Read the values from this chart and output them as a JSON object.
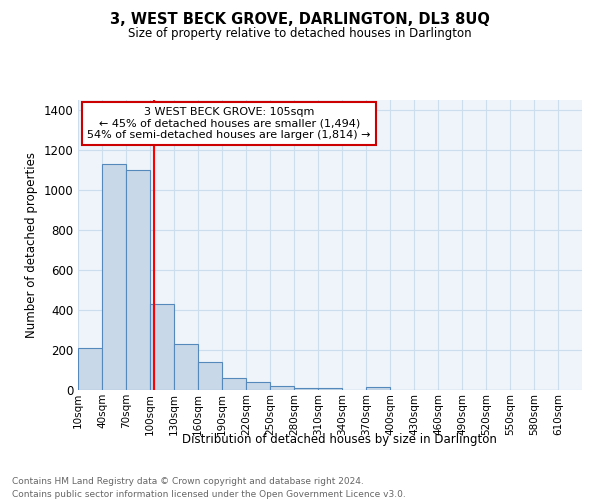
{
  "title": "3, WEST BECK GROVE, DARLINGTON, DL3 8UQ",
  "subtitle": "Size of property relative to detached houses in Darlington",
  "xlabel": "Distribution of detached houses by size in Darlington",
  "ylabel": "Number of detached properties",
  "footnote1": "Contains HM Land Registry data © Crown copyright and database right 2024.",
  "footnote2": "Contains public sector information licensed under the Open Government Licence v3.0.",
  "bin_labels": [
    "10sqm",
    "40sqm",
    "70sqm",
    "100sqm",
    "130sqm",
    "160sqm",
    "190sqm",
    "220sqm",
    "250sqm",
    "280sqm",
    "310sqm",
    "340sqm",
    "370sqm",
    "400sqm",
    "430sqm",
    "460sqm",
    "490sqm",
    "520sqm",
    "550sqm",
    "580sqm",
    "610sqm"
  ],
  "bar_values": [
    210,
    1130,
    1100,
    430,
    230,
    140,
    60,
    40,
    20,
    12,
    12,
    0,
    15,
    0,
    0,
    0,
    0,
    0,
    0,
    0
  ],
  "bar_color": "#c8d8e8",
  "bar_edge_color": "#5588bb",
  "red_line_x": 105,
  "annotation_text": "3 WEST BECK GROVE: 105sqm\n← 45% of detached houses are smaller (1,494)\n54% of semi-detached houses are larger (1,814) →",
  "annotation_box_color": "#ffffff",
  "annotation_box_edge": "#cc0000",
  "ylim": [
    0,
    1450
  ],
  "yticks": [
    0,
    200,
    400,
    600,
    800,
    1000,
    1200,
    1400
  ],
  "grid_color": "#ccddee",
  "bg_color": "#eef4fa"
}
